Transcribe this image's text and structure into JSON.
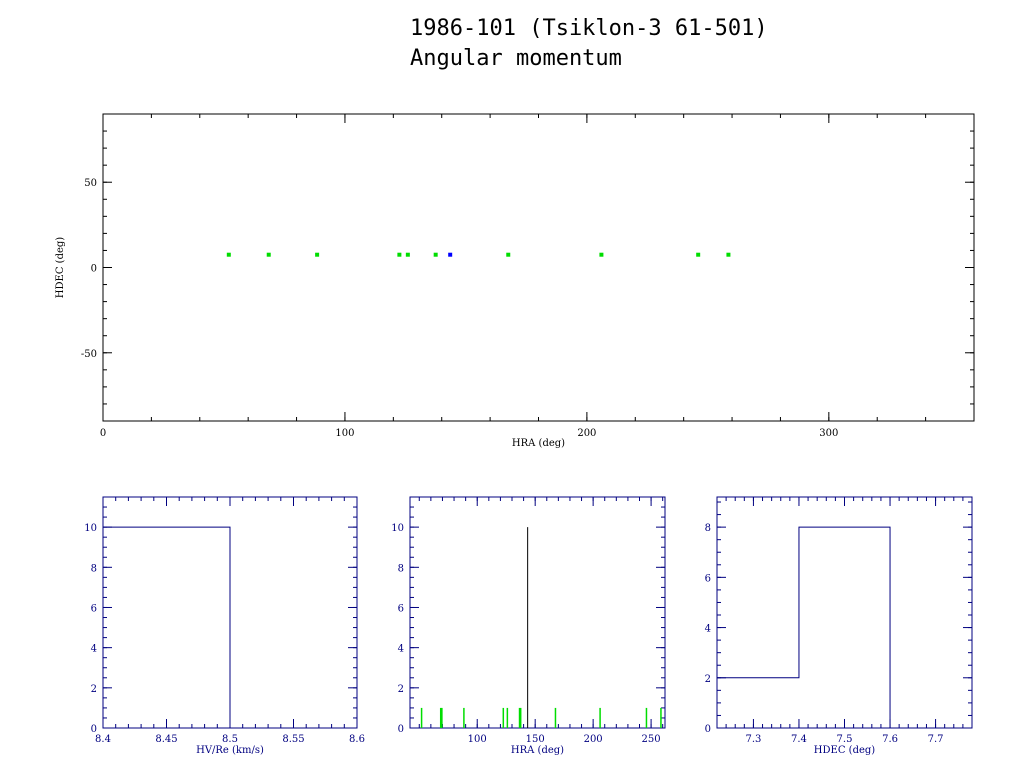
{
  "title": "1986-101 (Tsiklon-3 61-501)",
  "subtitle": "Angular momentum",
  "colors": {
    "black": "#000000",
    "navy": "#000080",
    "green": "#00dd00",
    "blue": "#0000ff"
  },
  "chart_data": [
    {
      "id": "scatter",
      "type": "scatter",
      "xlabel": "HRA (deg)",
      "ylabel": "HDEC (deg)",
      "xlim": [
        0,
        360
      ],
      "ylim": [
        -90,
        90
      ],
      "xticks": [
        0,
        100,
        200,
        300
      ],
      "yticks": [
        -50,
        0,
        50
      ],
      "series": [
        {
          "color": "#00dd00",
          "points": [
            [
              52,
              7.5
            ],
            [
              68.5,
              7.5
            ],
            [
              88.5,
              7.5
            ],
            [
              122.5,
              7.5
            ],
            [
              126,
              7.5
            ],
            [
              137.5,
              7.5
            ],
            [
              167.5,
              7.5
            ],
            [
              206,
              7.5
            ],
            [
              246,
              7.5
            ],
            [
              258.5,
              7.5
            ]
          ]
        },
        {
          "color": "#0000ff",
          "points": [
            [
              143.5,
              7.5
            ]
          ]
        }
      ]
    },
    {
      "id": "hist-hv",
      "type": "bar",
      "xlabel": "HV/Re (km/s)",
      "ylabel": "",
      "xlim": [
        8.4,
        8.6
      ],
      "ylim": [
        0,
        11.5
      ],
      "xticks": [
        "8.4",
        "8.45",
        "8.5",
        "8.55",
        "8.6"
      ],
      "yticks": [
        0,
        2,
        4,
        6,
        8,
        10
      ],
      "bins": [
        {
          "from": 8.4,
          "to": 8.5,
          "count": 10
        }
      ]
    },
    {
      "id": "hist-hra",
      "type": "bar",
      "xlabel": "HRA (deg)",
      "ylabel": "",
      "xlim": [
        42,
        262
      ],
      "ylim": [
        0,
        11.5
      ],
      "xticks": [
        "100",
        "150",
        "200",
        "250"
      ],
      "yticks": [
        0,
        2,
        4,
        6,
        8,
        10
      ],
      "main": {
        "x": 143.5,
        "count": 10
      },
      "spikes": [
        {
          "x": 52,
          "count": 1
        },
        {
          "x": 68.5,
          "count": 1
        },
        {
          "x": 69.5,
          "count": 1
        },
        {
          "x": 88.5,
          "count": 1
        },
        {
          "x": 122.5,
          "count": 1
        },
        {
          "x": 126,
          "count": 1
        },
        {
          "x": 136.5,
          "count": 1
        },
        {
          "x": 137.5,
          "count": 1
        },
        {
          "x": 167.5,
          "count": 1
        },
        {
          "x": 206,
          "count": 1
        },
        {
          "x": 246,
          "count": 1
        },
        {
          "x": 258.5,
          "count": 1
        }
      ]
    },
    {
      "id": "hist-hdec",
      "type": "bar",
      "xlabel": "HDEC (deg)",
      "ylabel": "",
      "xlim": [
        7.22,
        7.78
      ],
      "ylim": [
        0,
        9.2
      ],
      "xticks": [
        "7.3",
        "7.4",
        "7.5",
        "7.6",
        "7.7"
      ],
      "yticks": [
        0,
        2,
        4,
        6,
        8
      ],
      "bins": [
        {
          "from": 7.22,
          "to": 7.4,
          "count": 2
        },
        {
          "from": 7.4,
          "to": 7.6,
          "count": 8
        }
      ]
    }
  ]
}
